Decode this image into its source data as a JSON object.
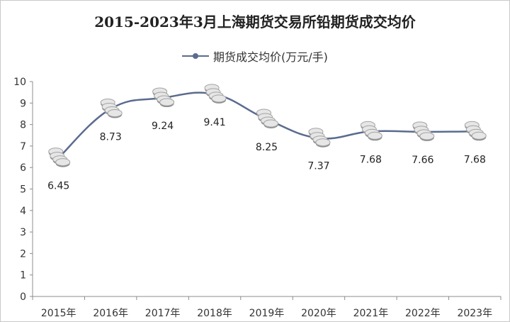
{
  "chart_data": {
    "type": "line",
    "title": "2015-2023年3月上海期货交易所铅期货成交均价",
    "series": [
      {
        "name": "期货成交均价(万元/手)",
        "values": [
          6.45,
          8.73,
          9.24,
          9.41,
          8.25,
          7.37,
          7.68,
          7.66,
          7.68
        ]
      }
    ],
    "categories": [
      "2015年",
      "2016年",
      "2017年",
      "2018年",
      "2019年",
      "2020年",
      "2021年",
      "2022年",
      "2023年"
    ],
    "y_ticks": [
      "0",
      "1",
      "2",
      "3",
      "4",
      "5",
      "6",
      "7",
      "8",
      "9",
      "10"
    ],
    "ylim": [
      0,
      10
    ],
    "data_labels": [
      "6.45",
      "8.73",
      "9.24",
      "9.41",
      "8.25",
      "7.37",
      "7.68",
      "7.66",
      "7.68"
    ],
    "grid": false,
    "legend_position": "top",
    "colors": {
      "line": "#5b6b8f",
      "marker": "#a3a3a3"
    }
  }
}
